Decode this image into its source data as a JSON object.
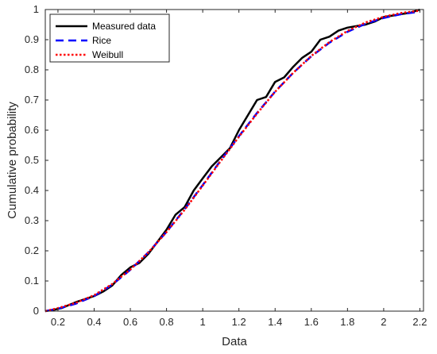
{
  "chart_data": {
    "type": "line",
    "title": "",
    "xlabel": "Data",
    "ylabel": "Cumulative probability",
    "xlim": [
      0.13,
      2.22
    ],
    "ylim": [
      0,
      1
    ],
    "xticks": [
      0.2,
      0.4,
      0.6,
      0.8,
      1,
      1.2,
      1.4,
      1.6,
      1.8,
      2,
      2.2
    ],
    "yticks": [
      0,
      0.1,
      0.2,
      0.3,
      0.4,
      0.5,
      0.6,
      0.7,
      0.8,
      0.9,
      1
    ],
    "grid": false,
    "legend_position": "top-left",
    "series": [
      {
        "name": "Measured data",
        "style": "solid",
        "color": "#000000",
        "x": [
          0.13,
          0.18,
          0.22,
          0.26,
          0.3,
          0.35,
          0.4,
          0.45,
          0.5,
          0.55,
          0.6,
          0.65,
          0.7,
          0.75,
          0.8,
          0.85,
          0.9,
          0.95,
          1.0,
          1.05,
          1.1,
          1.15,
          1.2,
          1.25,
          1.3,
          1.35,
          1.4,
          1.45,
          1.5,
          1.55,
          1.6,
          1.65,
          1.7,
          1.75,
          1.8,
          1.85,
          1.9,
          1.95,
          2.0,
          2.05,
          2.1,
          2.15,
          2.2
        ],
        "y": [
          0.0,
          0.005,
          0.01,
          0.02,
          0.03,
          0.04,
          0.05,
          0.065,
          0.085,
          0.12,
          0.145,
          0.16,
          0.19,
          0.23,
          0.27,
          0.32,
          0.345,
          0.4,
          0.44,
          0.48,
          0.51,
          0.54,
          0.6,
          0.65,
          0.7,
          0.71,
          0.76,
          0.775,
          0.81,
          0.84,
          0.86,
          0.9,
          0.91,
          0.93,
          0.94,
          0.945,
          0.95,
          0.96,
          0.975,
          0.98,
          0.985,
          0.99,
          1.0
        ]
      },
      {
        "name": "Rice",
        "style": "dashed",
        "color": "#0000ff",
        "x": [
          0.13,
          0.2,
          0.3,
          0.4,
          0.5,
          0.6,
          0.7,
          0.8,
          0.9,
          1.0,
          1.1,
          1.2,
          1.3,
          1.4,
          1.5,
          1.6,
          1.7,
          1.8,
          1.9,
          2.0,
          2.1,
          2.2
        ],
        "y": [
          0.0,
          0.008,
          0.025,
          0.05,
          0.088,
          0.137,
          0.195,
          0.263,
          0.338,
          0.418,
          0.5,
          0.58,
          0.657,
          0.728,
          0.79,
          0.845,
          0.89,
          0.926,
          0.953,
          0.972,
          0.985,
          0.993
        ]
      },
      {
        "name": "Weibull",
        "style": "dotted",
        "color": "#ff0000",
        "x": [
          0.13,
          0.2,
          0.3,
          0.4,
          0.5,
          0.6,
          0.7,
          0.8,
          0.9,
          1.0,
          1.1,
          1.2,
          1.3,
          1.4,
          1.5,
          1.6,
          1.7,
          1.8,
          1.9,
          2.0,
          2.1,
          2.2
        ],
        "y": [
          0.0,
          0.01,
          0.028,
          0.053,
          0.09,
          0.138,
          0.195,
          0.262,
          0.336,
          0.416,
          0.498,
          0.578,
          0.655,
          0.727,
          0.79,
          0.846,
          0.892,
          0.929,
          0.957,
          0.976,
          0.989,
          0.996
        ]
      }
    ]
  }
}
